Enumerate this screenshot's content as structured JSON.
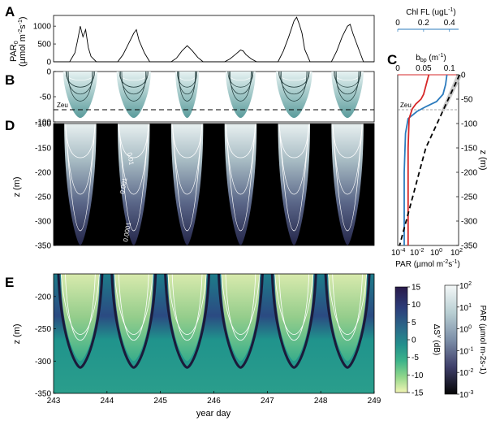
{
  "panel_letters": {
    "a": "A",
    "b": "B",
    "c": "C",
    "d": "D",
    "e": "E"
  },
  "colors": {
    "par_line": "#000000",
    "chl": "#2c7bbd",
    "bbp": "#d62728",
    "par_profile": "#000000",
    "teal": "#7fb3b3",
    "contour": "#ffffff"
  },
  "chart_data": [
    {
      "id": "A",
      "type": "line",
      "ylabel": "PAR0 (µmol m-2s-1)",
      "ylabel_main": "PAR",
      "ylabel_sub": "0",
      "ylabel_units": "(µmol m",
      "ylabel_units_sup": "-2",
      "ylabel_units_tail": "s",
      "ylabel_units_sup2": "-1",
      "ylabel_units_end": ")",
      "ylim": [
        0,
        1300
      ],
      "yticks": [
        0,
        500,
        1000
      ],
      "xlim": [
        243,
        249
      ],
      "series": [
        {
          "x": [
            243.0,
            243.3,
            243.4,
            243.45,
            243.5,
            243.55,
            243.6,
            243.65,
            243.7,
            243.8,
            244.2,
            244.3,
            244.4,
            244.5,
            244.55,
            244.6,
            244.7,
            244.8,
            245.2,
            245.3,
            245.4,
            245.5,
            245.55,
            245.6,
            245.7,
            245.8,
            246.2,
            246.3,
            246.4,
            246.5,
            246.55,
            246.6,
            246.7,
            246.8,
            247.2,
            247.3,
            247.4,
            247.5,
            247.55,
            247.6,
            247.65,
            247.7,
            247.8,
            248.2,
            248.3,
            248.4,
            248.5,
            248.55,
            248.6,
            248.7,
            248.8,
            249.0
          ],
          "y": [
            0,
            0,
            250,
            600,
            1000,
            700,
            900,
            400,
            150,
            0,
            0,
            200,
            500,
            800,
            900,
            600,
            250,
            0,
            0,
            100,
            300,
            450,
            380,
            300,
            120,
            0,
            0,
            80,
            200,
            330,
            300,
            200,
            80,
            0,
            0,
            300,
            700,
            1150,
            1250,
            1050,
            800,
            350,
            0,
            0,
            300,
            700,
            1000,
            1050,
            800,
            400,
            0,
            0
          ]
        }
      ]
    },
    {
      "id": "B",
      "type": "contour",
      "ylim": [
        -100,
        0
      ],
      "yticks": [
        0,
        -50,
        -100
      ],
      "zeu_label": "Zeu",
      "zeu_depth": -75,
      "xlim": [
        243,
        249
      ]
    },
    {
      "id": "C",
      "type": "line",
      "xlabel": "PAR (µmol m-2s-1)",
      "xlabel_main": "PAR (µmol m",
      "xlabel_sup": "-2",
      "xlabel_mid": "s",
      "xlabel_sup2": "-1",
      "xlabel_end": ")",
      "ylabel": "z (m)",
      "ylim": [
        -350,
        0
      ],
      "yticks": [
        0,
        -50,
        -100,
        -150,
        -200,
        -250,
        -300,
        -350
      ],
      "xticks_bottom": [
        {
          "base": "10",
          "exp": "-4"
        },
        {
          "base": "10",
          "exp": "-2"
        },
        {
          "base": "10",
          "exp": "0"
        },
        {
          "base": "10",
          "exp": "2"
        }
      ],
      "chl_axis": {
        "label_main": "Chl FL (ugL",
        "label_sup": "-1",
        "label_end": ")",
        "ticks": [
          "0",
          "0.2",
          "0.4"
        ]
      },
      "bbp_axis": {
        "label_main": "b",
        "label_sub": "bp",
        "label_units": " (m",
        "label_sup": "-1",
        "label_end": ")",
        "ticks": [
          "0",
          "0.05",
          "0.1"
        ]
      },
      "zeu_label": "Zeu",
      "zeu_depth": -75,
      "series": [
        {
          "name": "Chl FL",
          "color": "#2c7bbd",
          "depth": [
            0,
            -20,
            -40,
            -55,
            -65,
            -75,
            -90,
            -120,
            -200,
            -300,
            -350
          ],
          "value": [
            0.38,
            0.37,
            0.35,
            0.3,
            0.22,
            0.15,
            0.08,
            0.06,
            0.05,
            0.05,
            0.05
          ]
        },
        {
          "name": "bbp",
          "color": "#d62728",
          "depth": [
            0,
            -20,
            -40,
            -50,
            -60,
            -70,
            -90,
            -150,
            -250,
            -350
          ],
          "value": [
            0.06,
            0.055,
            0.05,
            0.045,
            0.035,
            0.028,
            0.022,
            0.02,
            0.02,
            0.02
          ]
        },
        {
          "name": "PAR",
          "color": "#000000",
          "depth": [
            0,
            -50,
            -75,
            -100,
            -150,
            -200,
            -250,
            -300,
            -350
          ],
          "log10_value": [
            2.6,
            1.4,
            0.8,
            0.2,
            -1.0,
            -1.7,
            -2.4,
            -3.1,
            -3.8
          ]
        }
      ]
    },
    {
      "id": "D",
      "type": "heatmap",
      "ylabel": "z (m)",
      "ylim": [
        -350,
        -100
      ],
      "yticks": [
        -100,
        -150,
        -200,
        -250,
        -300,
        -350
      ],
      "contour_labels": [
        "0.01",
        "0.001",
        "0.0001"
      ],
      "xlim": [
        243,
        249
      ]
    },
    {
      "id": "E",
      "type": "heatmap",
      "xlabel": "year day",
      "ylabel": "z (m)",
      "xlim": [
        243,
        249
      ],
      "xticks": [
        243,
        244,
        245,
        246,
        247,
        248,
        249
      ],
      "ylim": [
        -350,
        -165
      ],
      "yticks": [
        -200,
        -250,
        -300,
        -350
      ],
      "colorbar_sv": {
        "label": "ΔS",
        "label_sup": "v",
        "label_end": " (dB)",
        "ticks": [
          15,
          10,
          5,
          0,
          -5,
          -10,
          -15
        ]
      },
      "colorbar_par": {
        "label": "PAR (µmol m-2s-1)",
        "ticks": [
          {
            "base": "10",
            "exp": "2"
          },
          {
            "base": "10",
            "exp": "1"
          },
          {
            "base": "10",
            "exp": "0"
          },
          {
            "base": "10",
            "exp": "-1"
          },
          {
            "base": "10",
            "exp": "-2"
          },
          {
            "base": "10",
            "exp": "-3"
          }
        ]
      }
    }
  ]
}
